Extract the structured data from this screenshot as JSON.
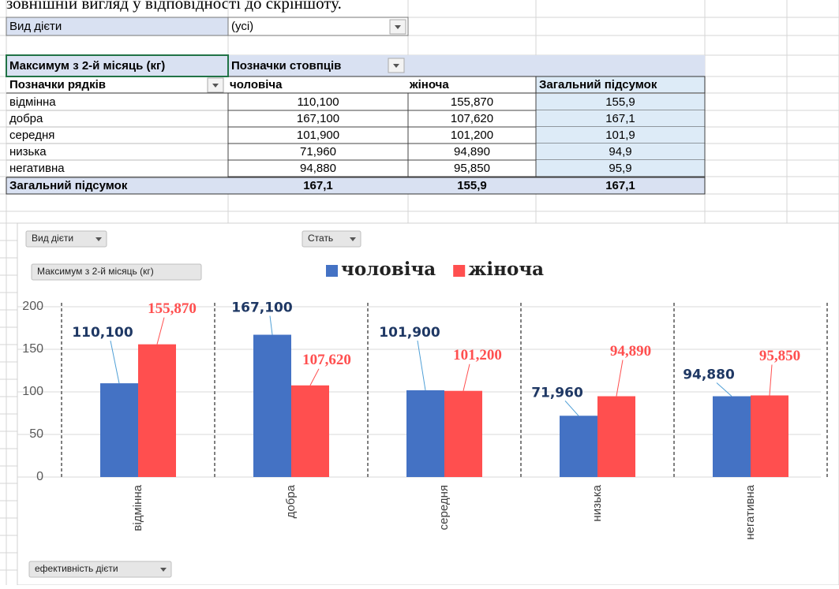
{
  "instruction_fragment": "зовнішній вигляд у відповідності до скріншоту.",
  "sheet": {
    "filter": {
      "label": "Вид дієти",
      "value": "(усі)"
    },
    "pivot": {
      "measure": "Максимум з 2-й місяць (кг)",
      "column_labels": "Позначки стовпців",
      "row_labels": "Позначки рядків",
      "columns": [
        "чоловіча",
        "жіноча",
        "Загальний підсумок"
      ],
      "rows": [
        [
          "відмінна",
          "110,100",
          "155,870",
          "155,9"
        ],
        [
          "добра",
          "167,100",
          "107,620",
          "167,1"
        ],
        [
          "середня",
          "101,900",
          "101,200",
          "101,9"
        ],
        [
          "низька",
          "71,960",
          "94,890",
          "94,9"
        ],
        [
          "негативна",
          "94,880",
          "95,850",
          "95,9"
        ]
      ],
      "total": [
        "Загальний підсумок",
        "167,1",
        "155,9",
        "167,1"
      ]
    }
  },
  "chart_data": {
    "type": "bar",
    "field_buttons": {
      "filter": "Вид дієти",
      "legend": "Стать",
      "measure": "Максимум з 2-й місяць (кг)",
      "axis": "ефективність дієти"
    },
    "categories": [
      "відмінна",
      "добра",
      "середня",
      "низька",
      "негативна"
    ],
    "series": [
      {
        "name": "чоловіча",
        "color": "#4472c4",
        "values": [
          110.1,
          167.1,
          101.9,
          71.96,
          94.88
        ],
        "value_labels": [
          "110,100",
          "167,100",
          "101,900",
          "71,960",
          "94,880"
        ]
      },
      {
        "name": "жіноча",
        "color": "#ff4f4f",
        "values": [
          155.87,
          107.62,
          101.2,
          94.89,
          95.85
        ],
        "value_labels": [
          "155,870",
          "107,620",
          "101,200",
          "94,890",
          "95,850"
        ]
      }
    ],
    "ylim": [
      0,
      200
    ],
    "yticks": [
      0,
      50,
      100,
      150,
      200
    ],
    "grid": true,
    "legend": "top"
  }
}
